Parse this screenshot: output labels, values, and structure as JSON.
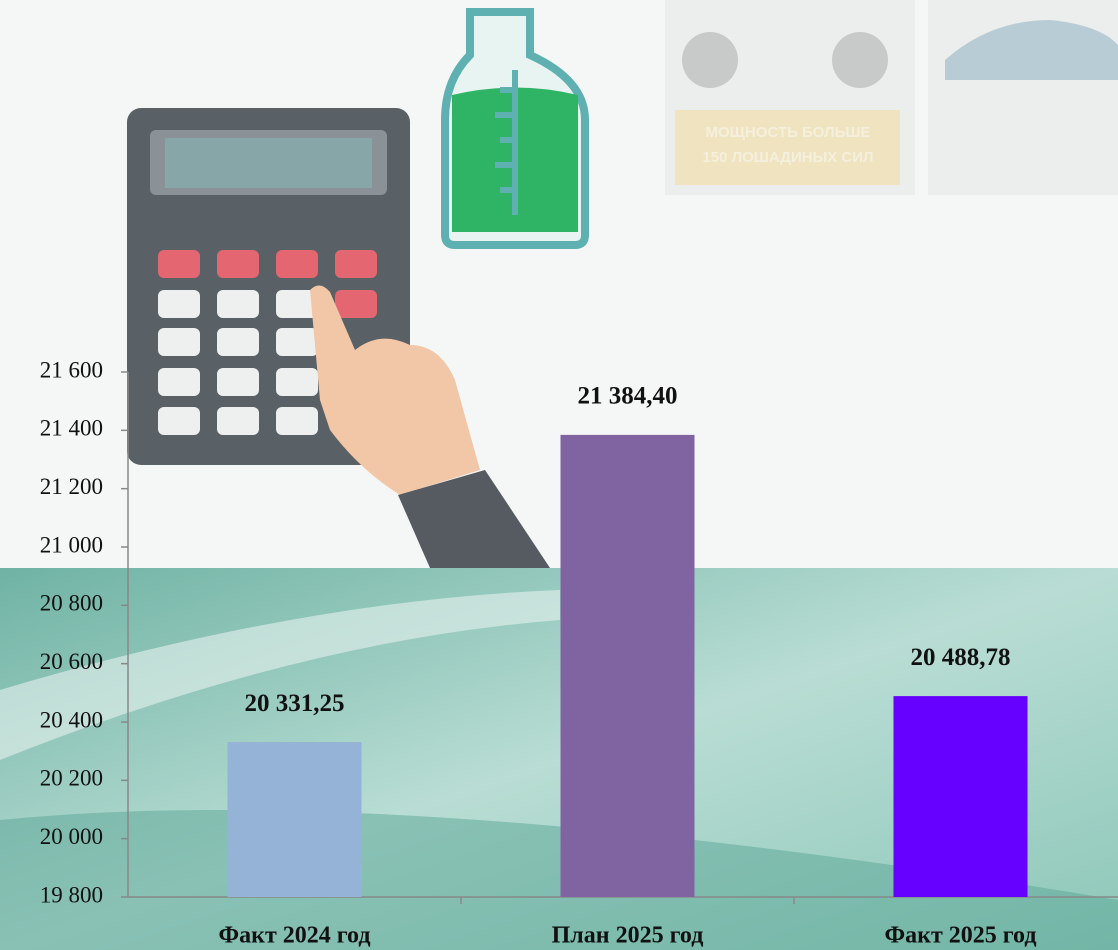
{
  "chart_data": {
    "type": "bar",
    "categories": [
      "Факт 2024 год",
      "План 2025 год",
      "Факт 2025 год"
    ],
    "values": [
      20331.25,
      21384.4,
      20488.78
    ],
    "value_labels": [
      "20 331,25",
      "21 384,40",
      "20 488,78"
    ],
    "colors": [
      "#95b3d7",
      "#8064a2",
      "#6600ff"
    ],
    "ylim": [
      19800,
      21600
    ],
    "yticks": [
      {
        "value": 19800,
        "label": "19 800"
      },
      {
        "value": 20000,
        "label": "20 000"
      },
      {
        "value": 20200,
        "label": "20 200"
      },
      {
        "value": 20400,
        "label": "20 400"
      },
      {
        "value": 20600,
        "label": "20 600"
      },
      {
        "value": 20800,
        "label": "20 800"
      },
      {
        "value": 21000,
        "label": "21 000"
      },
      {
        "value": 21200,
        "label": "21 200"
      },
      {
        "value": 21400,
        "label": "21 400"
      },
      {
        "value": 21600,
        "label": "21 600"
      }
    ],
    "annotations": [
      "МОЩНОСТЬ БОЛЬШЕ",
      "150 ЛОШАДИНЫХ СИЛ"
    ]
  }
}
